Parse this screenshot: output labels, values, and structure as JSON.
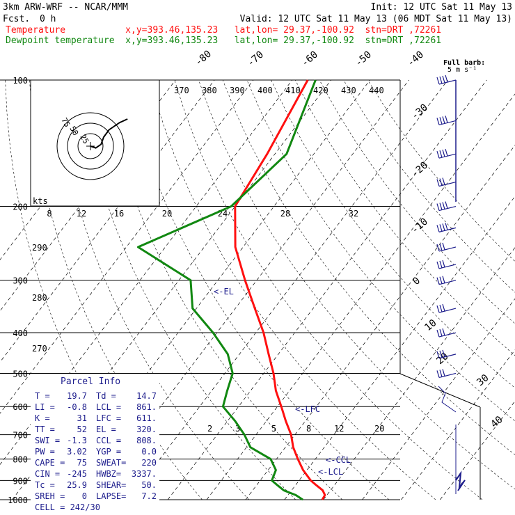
{
  "header": {
    "model": "3km ARW-WRF -- NCAR/MMM",
    "init": "Init: 12 UTC Sat 11 May 13",
    "fcst_label": "Fcst.",
    "fcst_value": "0 h",
    "valid": "Valid: 12 UTC Sat 11 May 13 (06 MDT Sat 11 May 13)",
    "temperature_line": "Temperature           x,y=393.46,135.23   lat,lon= 29.37,-100.92  stn=DRT ,72261",
    "dewpoint_line": "Dewpoint temperature  x,y=393.46,135.23   lat,lon= 29.37,-100.92  stn=DRT ,72261",
    "full_barb_label": "Full barb:",
    "full_barb_unit": "5 m s⁻¹",
    "colors": {
      "temperature": "#ff1010",
      "dewpoint": "#118811",
      "text": "#000000",
      "info": "#1c1c8c"
    }
  },
  "chart_data": {
    "type": "line",
    "chart_kind": "skew-T log-p",
    "pressure_levels": [
      100,
      200,
      300,
      400,
      500,
      600,
      700,
      800,
      900,
      1000
    ],
    "pressure_range": [
      100,
      1000
    ],
    "isotherm_labels": [
      "-80",
      "-70",
      "-60",
      "-50",
      "-40",
      "-30",
      "-20",
      "-10",
      "0",
      "10",
      "20",
      "30",
      "40"
    ],
    "theta_labels": [
      "370",
      "380",
      "390",
      "400",
      "410",
      "420",
      "430",
      "440",
      "290",
      "280",
      "270"
    ],
    "mixing_ratio_labels": [
      "2",
      "3",
      "5",
      "8",
      "12",
      "20"
    ],
    "series": [
      {
        "name": "Temperature",
        "color": "#ff1010",
        "p": [
          1000,
          975,
          950,
          925,
          900,
          850,
          800,
          750,
          700,
          650,
          600,
          550,
          500,
          450,
          400,
          350,
          300,
          250,
          200,
          150,
          100
        ],
        "t": [
          19.7,
          19.5,
          18.0,
          15.5,
          13.0,
          9.0,
          5.5,
          2.0,
          -1.0,
          -5.0,
          -9.0,
          -13.5,
          -17.5,
          -22.5,
          -28.0,
          -35.0,
          -43.0,
          -52.0,
          -60.0,
          -62.0,
          -66.0
        ]
      },
      {
        "name": "Dewpoint temperature",
        "color": "#118811",
        "p": [
          1000,
          975,
          950,
          925,
          900,
          850,
          800,
          750,
          700,
          650,
          600,
          550,
          500,
          450,
          400,
          350,
          300,
          250,
          200,
          150,
          100
        ],
        "t": [
          14.7,
          12.0,
          8.0,
          5.5,
          3.0,
          2.0,
          -1.5,
          -9.0,
          -13.0,
          -18.0,
          -24.0,
          -26.0,
          -28.0,
          -33.0,
          -41.0,
          -51.0,
          -57.0,
          -77.0,
          -61.0,
          -57.0,
          -64.0
        ]
      }
    ],
    "annotations": [
      "<-EL",
      "<-LFC",
      "<-CCL",
      "<-LCL"
    ]
  },
  "hodograph": {
    "kts_label": "kts",
    "ring_labels": [
      "75",
      "50",
      "25"
    ],
    "kts_axis_labels": [
      "8",
      "12",
      "16",
      "20",
      "24",
      "28",
      "32"
    ],
    "trace": [
      [
        0,
        0
      ],
      [
        4,
        -2
      ],
      [
        8,
        2
      ],
      [
        10,
        10
      ],
      [
        14,
        18
      ],
      [
        22,
        26
      ],
      [
        28,
        30
      ]
    ]
  },
  "parcel_info": {
    "title": "Parcel Info",
    "rows": [
      [
        "T  =",
        "19.7",
        "Td =",
        "14.7"
      ],
      [
        "LI =",
        "-0.8",
        "LCL =",
        "861."
      ],
      [
        "K  =",
        "31",
        "LFC =",
        "611."
      ],
      [
        "TT =",
        "52",
        "EL  =",
        "320."
      ],
      [
        "SWI =",
        "-1.3",
        "CCL =",
        "808."
      ],
      [
        "PW =",
        "3.02",
        "YGP =",
        "0.0"
      ],
      [
        "CAPE =",
        "75",
        "SWEAT=",
        "220"
      ],
      [
        "CIN =",
        "-245",
        "HWBZ=",
        "3337."
      ],
      [
        "Tc =",
        "25.9",
        "SHEAR=",
        "50."
      ],
      [
        "SREH =",
        "0",
        "LAPSE=",
        "7.2"
      ]
    ],
    "cell": "CELL = 242/30"
  },
  "wind_barbs": {
    "p": [
      100,
      125,
      150,
      175,
      200,
      225,
      250,
      275,
      300,
      350,
      400,
      450,
      500
    ],
    "speed": [
      45,
      45,
      40,
      35,
      40,
      40,
      35,
      35,
      35,
      35,
      30,
      30,
      30
    ],
    "dir": [
      260,
      265,
      260,
      255,
      255,
      255,
      250,
      250,
      245,
      250,
      250,
      250,
      250
    ]
  }
}
